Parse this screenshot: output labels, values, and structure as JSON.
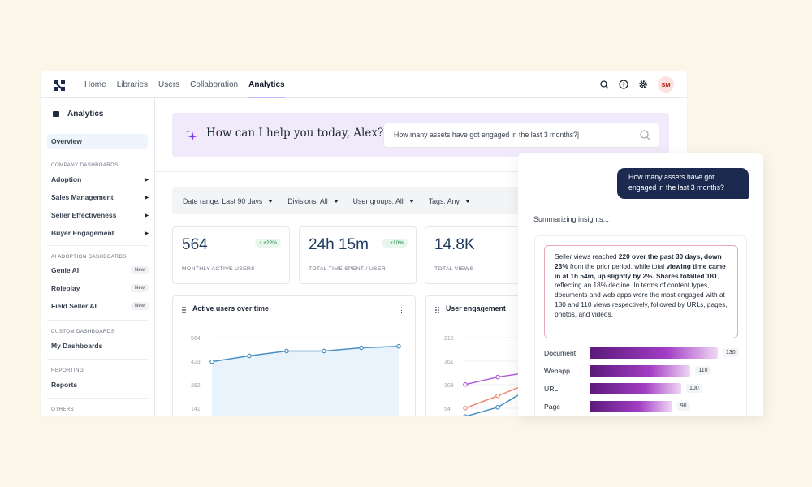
{
  "topbar": {
    "nav": [
      "Home",
      "Libraries",
      "Users",
      "Collaboration",
      "Analytics"
    ],
    "active_nav": "Analytics",
    "avatar_initials": "SM"
  },
  "sidebar": {
    "title": "Analytics",
    "overview": "Overview",
    "sections": [
      {
        "label": "COMPANY DASHBOARDS"
      },
      {
        "label": "AI ADOPTION DASHBOARDS"
      },
      {
        "label": "CUSTOM DASHBOARDS"
      },
      {
        "label": "REPORTING"
      },
      {
        "label": "OTHERS"
      }
    ],
    "company_items": [
      "Adoption",
      "Sales Management",
      "Seller Effectiveness",
      "Buyer Engagement"
    ],
    "ai_items": [
      {
        "label": "Genie AI",
        "badge": "New"
      },
      {
        "label": "Roleplay",
        "badge": "New"
      },
      {
        "label": "Field Seller AI",
        "badge": "New"
      }
    ],
    "custom_items": [
      "My Dashboards"
    ],
    "reporting_items": [
      "Reports"
    ]
  },
  "assistant": {
    "greeting": "How can I help you today, Alex?",
    "query": "How many assets have got engaged in the last 3 months?|"
  },
  "filters": [
    {
      "label": "Date range: Last 90 days"
    },
    {
      "label": "Divisions: All"
    },
    {
      "label": "User groups: All"
    },
    {
      "label": "Tags: Any"
    }
  ],
  "kpis": [
    {
      "value": "564",
      "delta": "↑ +22%",
      "label": "MONTHLY ACTIVE USERS"
    },
    {
      "value": "24h 15m",
      "delta": "↑ +10%",
      "label": "TOTAL TIME SPENT / USER"
    },
    {
      "value": "14.8K",
      "delta": "↑",
      "label": "TOTAL VIEWS"
    }
  ],
  "cards": {
    "active_users_title": "Active users over time",
    "user_engagement_title": "User engagement"
  },
  "chart_data": [
    {
      "type": "area",
      "title": "Active users over time",
      "yticks": [
        564,
        423,
        282,
        141
      ],
      "series": [
        {
          "values": [
            420,
            455,
            484,
            484,
            503,
            512
          ]
        }
      ],
      "ylim": [
        0,
        564
      ],
      "grid": true
    },
    {
      "type": "line",
      "title": "User engagement",
      "yticks": [
        215,
        161,
        108,
        54
      ],
      "series": [
        {
          "color": "#b45cd6",
          "values": [
            108,
            125,
            136
          ]
        },
        {
          "color": "#ef8a73",
          "values": [
            54,
            82,
            112
          ]
        },
        {
          "color": "#4a90c2",
          "values": [
            35,
            56,
            100
          ]
        }
      ],
      "ylim": [
        0,
        215
      ],
      "grid": true
    },
    {
      "type": "bar",
      "orientation": "horizontal",
      "categories": [
        "Document",
        "Webapp",
        "URL",
        "Page"
      ],
      "values": [
        130,
        110,
        100,
        90
      ]
    }
  ],
  "chat": {
    "user_message": "How many assets have got engaged in the last 3 months?",
    "status": "Summarizing insights...",
    "insight": {
      "p1": "Seller views reached ",
      "b1": "220 over the past 30 days, down 23%",
      "p2": " from the prior period, while total ",
      "b2": "viewing time came in at 1h 54m, up slightly by 2%. Shares totalled 181",
      "p3": ", reflecting an 18% decline. In terms of content types, documents and web apps were the most engaged with at 130 and 110 views respectively, followed by URLs, pages, photos, and videos."
    }
  },
  "colors": {
    "accent": "#1b2a4e",
    "kpi_value": "#1e3a5f",
    "banner": "#f1eafa",
    "line": "#4a90c2"
  }
}
